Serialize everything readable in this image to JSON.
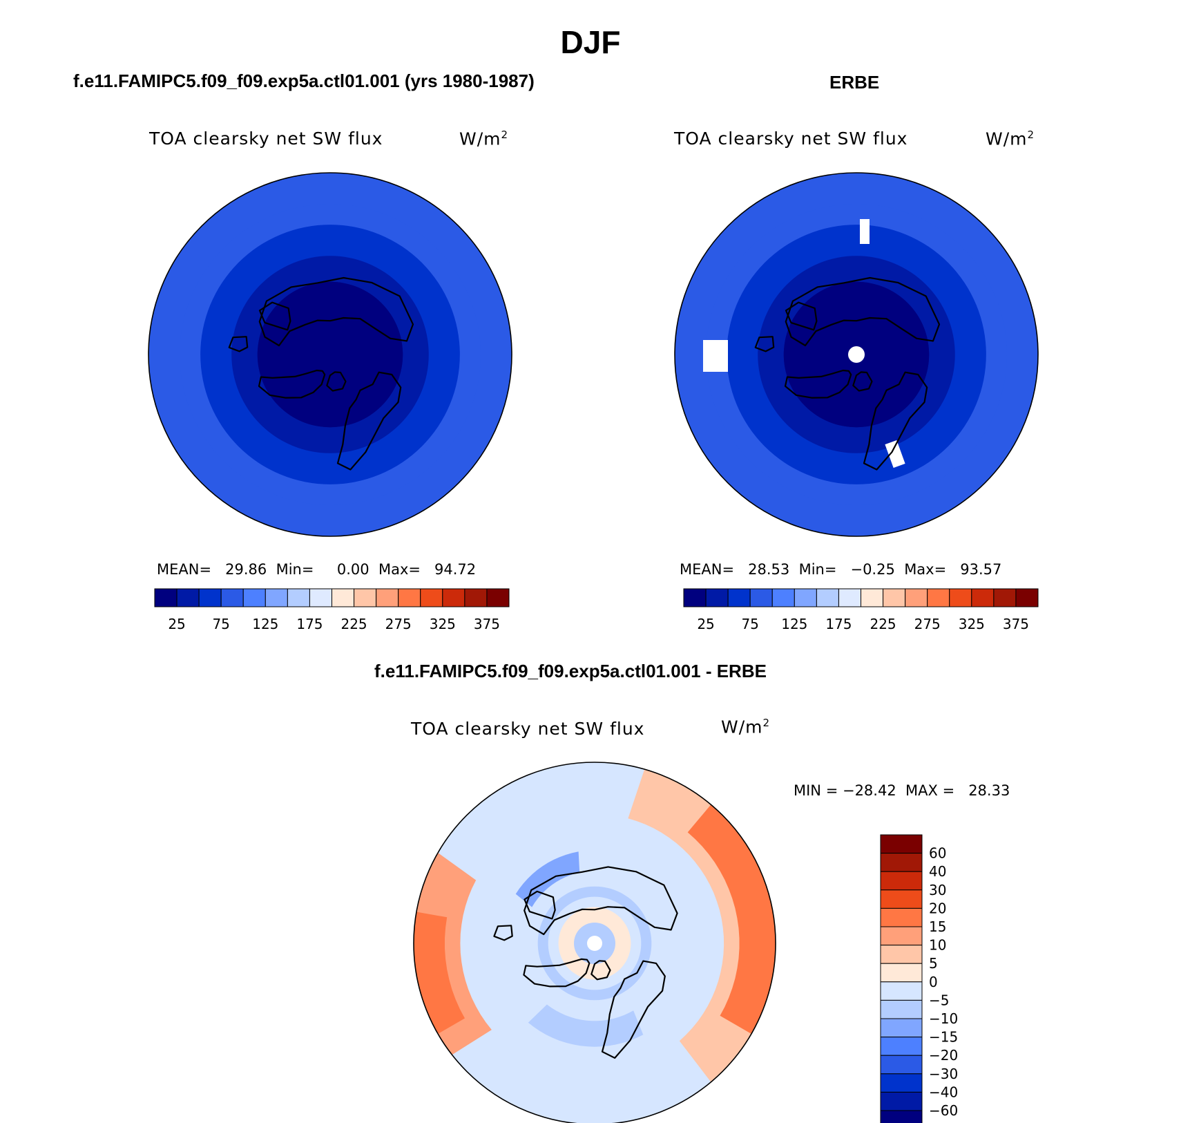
{
  "title": "DJF",
  "colors": {
    "abs_levels": [
      "#00007f",
      "#001aa6",
      "#0033cc",
      "#2b5ae6",
      "#4d80ff",
      "#80a6ff",
      "#b3cdff",
      "#dfeaff",
      "#ffe9d8",
      "#ffc6a8",
      "#ffa07a",
      "#ff7744",
      "#ee4c1a",
      "#cc2a0a",
      "#a11806",
      "#7a0000"
    ],
    "diff_levels": [
      "#00007f",
      "#001aa6",
      "#0033cc",
      "#2b5ae6",
      "#4d80ff",
      "#80a6ff",
      "#b3cdff",
      "#d6e6ff",
      "#ffe9d8",
      "#ffc6a8",
      "#ffa07a",
      "#ff7744",
      "#ee4c1a",
      "#cc2a0a",
      "#a11806",
      "#7a0000"
    ]
  },
  "chart_data": [
    {
      "type": "heatmap",
      "panel_title": "f.e11.FAMIPC5.f09_f09.exp5a.ctl01.001 (yrs 1980-1987)",
      "field": "TOA clearsky net SW flux",
      "units": "W/m",
      "units_exp": "2",
      "stats": {
        "mean_label": "MEAN=",
        "mean": "29.86",
        "min_label": "Min=",
        "min": "0.00",
        "max_label": "Max=",
        "max": "94.72"
      },
      "colorbar_ticks": [
        "25",
        "75",
        "125",
        "175",
        "225",
        "275",
        "325",
        "375"
      ],
      "zones": [
        {
          "level": 0,
          "from_lat": 90,
          "to_lat": 62
        },
        {
          "level": 1,
          "from_lat": 62,
          "to_lat": 52
        },
        {
          "level": 2,
          "from_lat": 52,
          "to_lat": 40
        },
        {
          "level": 3,
          "from_lat": 40,
          "to_lat": 32
        }
      ]
    },
    {
      "type": "heatmap",
      "panel_title": "ERBE",
      "field": "TOA clearsky net SW flux",
      "units": "W/m",
      "units_exp": "2",
      "stats": {
        "mean_label": "MEAN=",
        "mean": "28.53",
        "min_label": "Min=",
        "min": "−0.25",
        "max_label": "Max=",
        "max": "93.57"
      },
      "colorbar_ticks": [
        "25",
        "75",
        "125",
        "175",
        "225",
        "275",
        "325",
        "375"
      ],
      "zones": [
        {
          "level": 0,
          "from_lat": 90,
          "to_lat": 62
        },
        {
          "level": 1,
          "from_lat": 62,
          "to_lat": 52
        },
        {
          "level": 2,
          "from_lat": 52,
          "to_lat": 40
        },
        {
          "level": 3,
          "from_lat": 40,
          "to_lat": 32
        }
      ]
    },
    {
      "type": "heatmap",
      "panel_title": "f.e11.FAMIPC5.f09_f09.exp5a.ctl01.001 - ERBE",
      "field": "TOA clearsky net SW flux",
      "units": "W/m",
      "units_exp": "2",
      "stats_text": "MIN = −28.42  MAX =   28.33",
      "colorbar_ticks": [
        "60",
        "40",
        "30",
        "20",
        "15",
        "10",
        "5",
        "0",
        "−5",
        "−10",
        "−15",
        "−20",
        "−30",
        "−40",
        "−60"
      ],
      "diff_range": [
        -28.42,
        28.33
      ]
    }
  ]
}
